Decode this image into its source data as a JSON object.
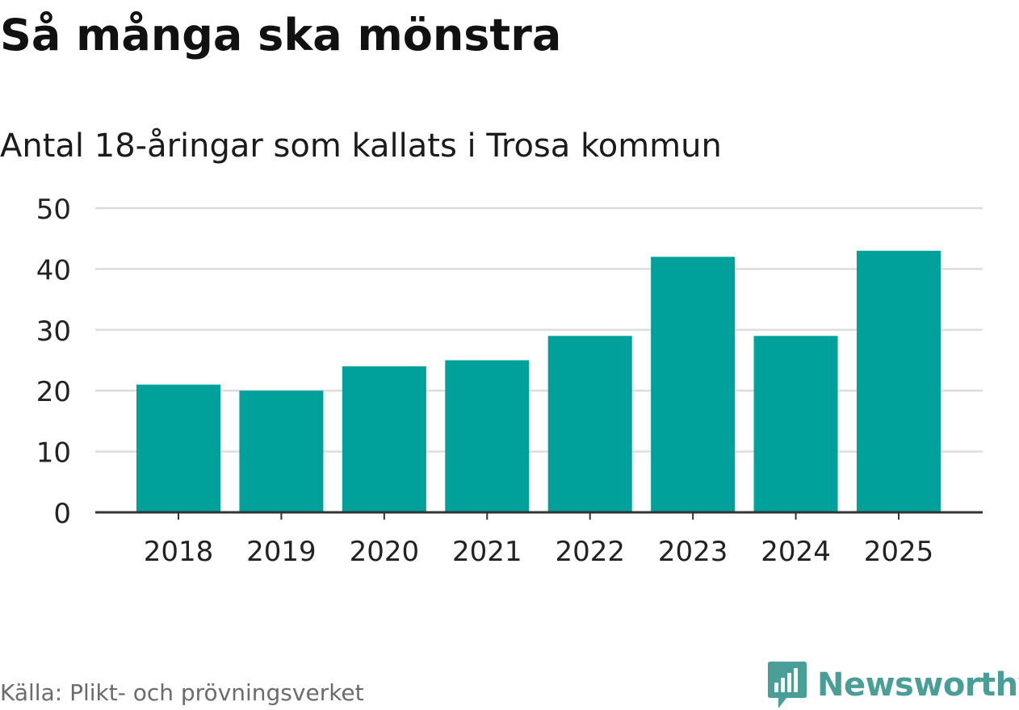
{
  "header": {
    "title": "Så många ska mönstra",
    "subtitle": "Antal 18-åringar som kallats i Trosa kommun"
  },
  "footer": {
    "source": "Källa: Plikt- och prövningsverket",
    "logo_text": "Newsworthy",
    "logo_icon": "newsworthy-bar-chart-icon"
  },
  "colors": {
    "bar": "#00a19a",
    "grid": "#dddddd",
    "axis": "#333333",
    "logo": "#4a9e98"
  },
  "chart_data": {
    "type": "bar",
    "title": "Så många ska mönstra",
    "subtitle": "Antal 18-åringar som kallats i Trosa kommun",
    "xlabel": "",
    "ylabel": "",
    "categories": [
      "2018",
      "2019",
      "2020",
      "2021",
      "2022",
      "2023",
      "2024",
      "2025"
    ],
    "values": [
      21,
      20,
      24,
      25,
      29,
      42,
      29,
      43
    ],
    "ylim": [
      0,
      50
    ],
    "yticks": [
      0,
      10,
      20,
      30,
      40,
      50
    ],
    "grid": true,
    "legend": "none"
  }
}
